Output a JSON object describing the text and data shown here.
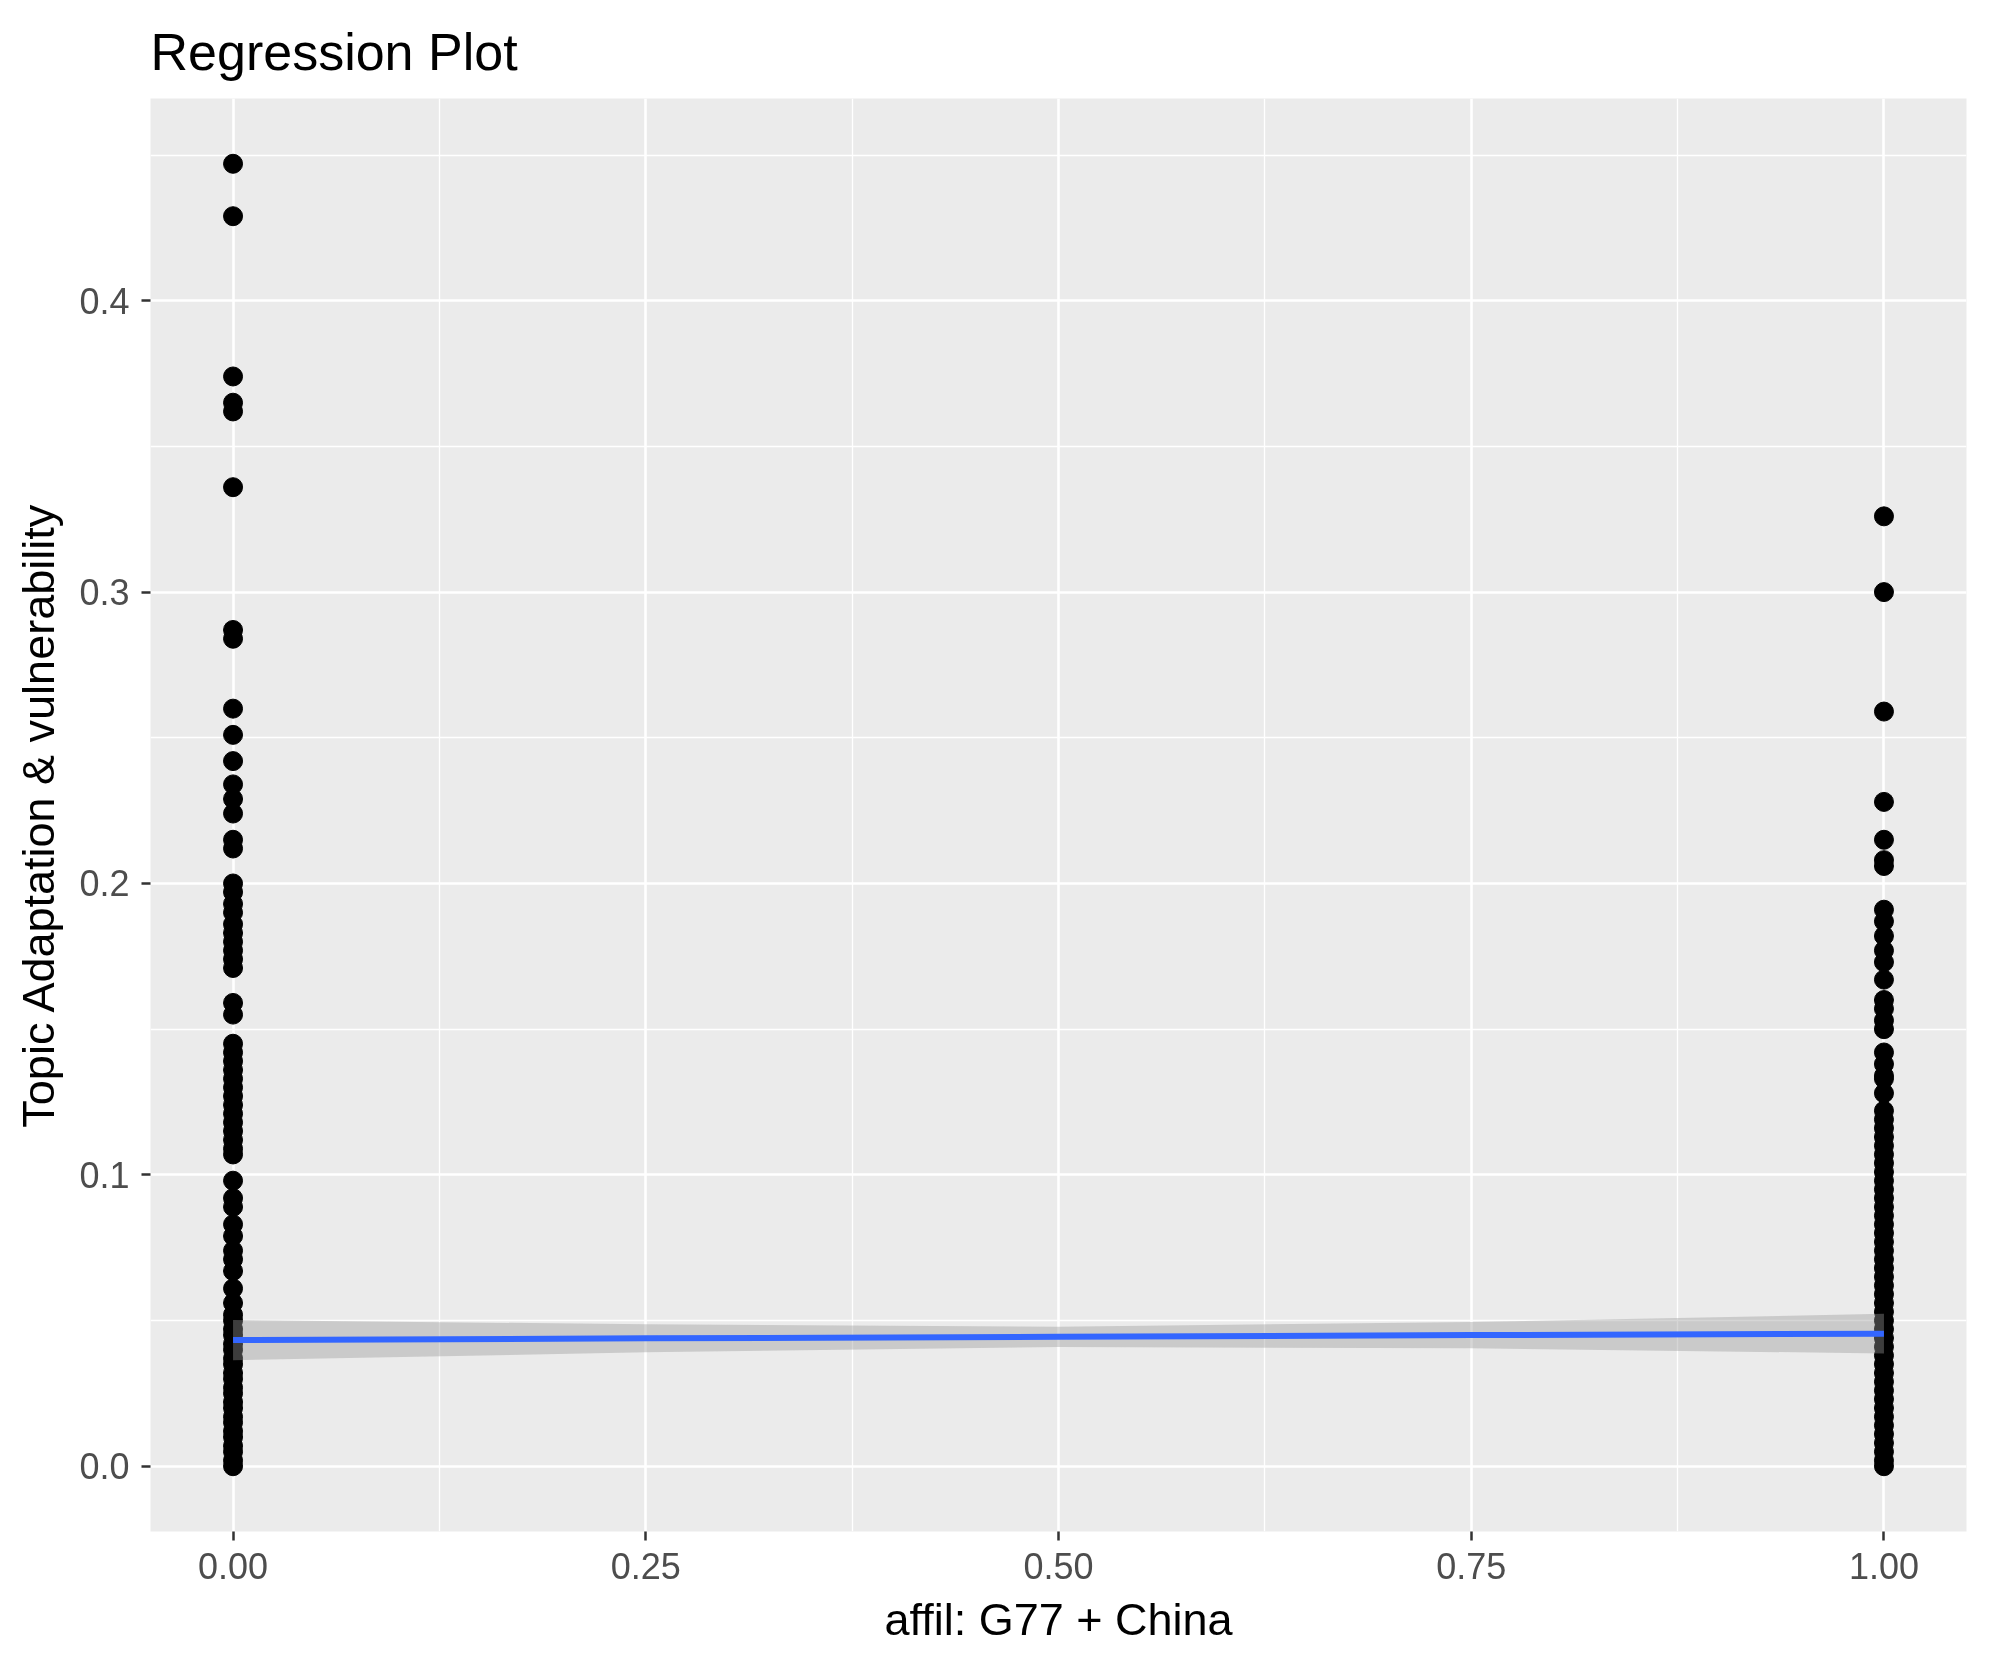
{
  "chart_data": {
    "type": "scatter",
    "title": "Regression Plot",
    "xlabel": "affil: G77 + China",
    "ylabel": "Topic Adaptation & vulnerability",
    "xlim": [
      -0.05,
      1.05
    ],
    "ylim": [
      -0.0224,
      0.4694
    ],
    "xticks": [
      {
        "value": 0,
        "label": "0.00"
      },
      0.25,
      {
        "value": 0.5,
        "label": "0.50"
      },
      0.75,
      {
        "value": 1,
        "label": "1.00"
      }
    ],
    "yticks": [
      {
        "value": 0,
        "label": "0.0"
      },
      0.1,
      0.2,
      0.3,
      0.4
    ],
    "grid": true,
    "marker": "circle",
    "series": [
      {
        "color": "#000000",
        "x": [
          0,
          0,
          0,
          0,
          0,
          0,
          0,
          0,
          0,
          0,
          0,
          0,
          0,
          0,
          0,
          0,
          0,
          0,
          0,
          0,
          0,
          0,
          0,
          0,
          0,
          0,
          0,
          0,
          0,
          0,
          0,
          0,
          0,
          0,
          0,
          0,
          0,
          0,
          0,
          0,
          0,
          0,
          0,
          0,
          0,
          0,
          0,
          0,
          0,
          0,
          0,
          0,
          0,
          0,
          0,
          0,
          0,
          0,
          0,
          0,
          0,
          0,
          0,
          0,
          0,
          0,
          0,
          0,
          0,
          0,
          0,
          0,
          0,
          0
        ],
        "values": [
          0.447,
          0.429,
          0.374,
          0.365,
          0.362,
          0.336,
          0.287,
          0.284,
          0.26,
          0.251,
          0.242,
          0.234,
          0.229,
          0.224,
          0.215,
          0.212,
          0.2,
          0.197,
          0.193,
          0.19,
          0.186,
          0.183,
          0.18,
          0.177,
          0.174,
          0.171,
          0.159,
          0.155,
          0.145,
          0.142,
          0.139,
          0.136,
          0.133,
          0.13,
          0.127,
          0.124,
          0.121,
          0.118,
          0.115,
          0.112,
          0.109,
          0.107,
          0.098,
          0.092,
          0.089,
          0.083,
          0.079,
          0.074,
          0.071,
          0.067,
          0.061,
          0.056,
          0.052,
          0.05,
          0.047,
          0.045,
          0.042,
          0.04,
          0.037,
          0.035,
          0.032,
          0.03,
          0.027,
          0.025,
          0.022,
          0.02,
          0.017,
          0.015,
          0.012,
          0.01,
          0.007,
          0.005,
          0.002,
          0
        ]
      },
      {
        "color": "#000000",
        "x": [
          1,
          1,
          1,
          1,
          1,
          1,
          1,
          1,
          1,
          1,
          1,
          1,
          1,
          1,
          1,
          1,
          1,
          1,
          1,
          1,
          1,
          1,
          1,
          1,
          1,
          1,
          1,
          1,
          1,
          1,
          1,
          1,
          1,
          1,
          1,
          1,
          1,
          1,
          1,
          1,
          1,
          1,
          1,
          1,
          1,
          1,
          1,
          1,
          1,
          1,
          1,
          1,
          1,
          1,
          1,
          1,
          1,
          1,
          1,
          1,
          1,
          1,
          1,
          1
        ],
        "values": [
          0.326,
          0.3,
          0.259,
          0.228,
          0.215,
          0.208,
          0.206,
          0.191,
          0.187,
          0.182,
          0.177,
          0.173,
          0.167,
          0.16,
          0.157,
          0.153,
          0.15,
          0.142,
          0.138,
          0.134,
          0.133,
          0.128,
          0.122,
          0.119,
          0.116,
          0.113,
          0.11,
          0.107,
          0.104,
          0.101,
          0.098,
          0.095,
          0.092,
          0.089,
          0.086,
          0.083,
          0.08,
          0.077,
          0.074,
          0.071,
          0.068,
          0.065,
          0.062,
          0.059,
          0.056,
          0.053,
          0.05,
          0.047,
          0.044,
          0.041,
          0.038,
          0.035,
          0.032,
          0.029,
          0.026,
          0.023,
          0.02,
          0.017,
          0.014,
          0.011,
          0.008,
          0.005,
          0.002,
          0
        ]
      },
      {
        "type": "line",
        "color": "#3366ff",
        "marker": "none",
        "line_style": "solid",
        "x": [
          0,
          0.25,
          0.5,
          0.75,
          1
        ],
        "values": [
          0.0433,
          0.0439,
          0.0444,
          0.045,
          0.0455
        ],
        "lower": [
          0.0364,
          0.0391,
          0.0409,
          0.0405,
          0.0387
        ],
        "upper": [
          0.0502,
          0.0487,
          0.0479,
          0.0495,
          0.0523
        ]
      }
    ]
  }
}
